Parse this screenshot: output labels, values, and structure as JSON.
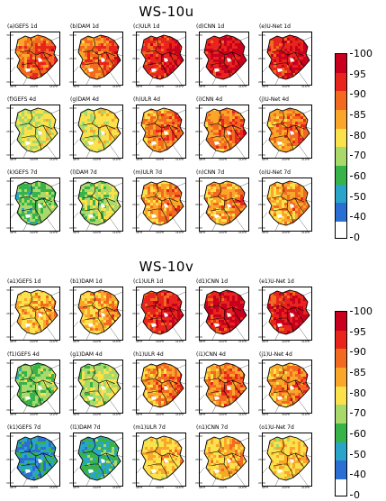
{
  "sections": [
    {
      "title": "WS-10u",
      "panels": [
        {
          "label": "(a)GEFS 1d",
          "level": 0.88
        },
        {
          "label": "(b)DAM 1d",
          "level": 0.88
        },
        {
          "label": "(c)ULR 1d",
          "level": 0.93
        },
        {
          "label": "(d)CNN 1d",
          "level": 0.95
        },
        {
          "label": "(e)U-Net 1d",
          "level": 0.94
        },
        {
          "label": "(f)GEFS 4d",
          "level": 0.72
        },
        {
          "label": "(g)DAM 4d",
          "level": 0.74
        },
        {
          "label": "(h)ULR 4d",
          "level": 0.86
        },
        {
          "label": "(i)CNN 4d",
          "level": 0.87
        },
        {
          "label": "(j)U-Net 4d",
          "level": 0.86
        },
        {
          "label": "(k)GEFS 7d",
          "level": 0.6
        },
        {
          "label": "(l)DAM 7d",
          "level": 0.66
        },
        {
          "label": "(m)ULR 7d",
          "level": 0.84
        },
        {
          "label": "(n)CNN 7d",
          "level": 0.84
        },
        {
          "label": "(o)U-Net 7d",
          "level": 0.83
        }
      ]
    },
    {
      "title": "WS-10v",
      "panels": [
        {
          "label": "(a1)GEFS 1d",
          "level": 0.8
        },
        {
          "label": "(b1)DAM 1d",
          "level": 0.82
        },
        {
          "label": "(c1)ULR 1d",
          "level": 0.93
        },
        {
          "label": "(d1)CNN 1d",
          "level": 0.95
        },
        {
          "label": "(e1)U-Net 1d",
          "level": 0.94
        },
        {
          "label": "(f1)GEFS 4d",
          "level": 0.62
        },
        {
          "label": "(g1)DAM 4d",
          "level": 0.68
        },
        {
          "label": "(h1)ULR 4d",
          "level": 0.85
        },
        {
          "label": "(i1)CNN 4d",
          "level": 0.86
        },
        {
          "label": "(j1)U-Net 4d",
          "level": 0.85
        },
        {
          "label": "(k1)GEFS 7d",
          "level": 0.45
        },
        {
          "label": "(l1)DAM 7d",
          "level": 0.52
        },
        {
          "label": "(m1)ULR 7d",
          "level": 0.78
        },
        {
          "label": "(n1)CNN 7d",
          "level": 0.8
        },
        {
          "label": "(o1)U-Net 7d",
          "level": 0.78
        }
      ]
    }
  ],
  "axis": {
    "lat_labels": [
      "30°N",
      "25°N",
      "20°N"
    ],
    "lon_labels": [
      "98°E",
      "104°E",
      "110°E"
    ]
  },
  "colorbar": {
    "ticks": [
      "100",
      "95",
      "90",
      "85",
      "80",
      "70",
      "60",
      "50",
      "40",
      "0"
    ],
    "colors": [
      "#c8001e",
      "#e8251c",
      "#f26a1f",
      "#f9a62a",
      "#fbe14b",
      "#a9d96a",
      "#38b34a",
      "#2aa5c9",
      "#2c6fd3"
    ]
  }
}
